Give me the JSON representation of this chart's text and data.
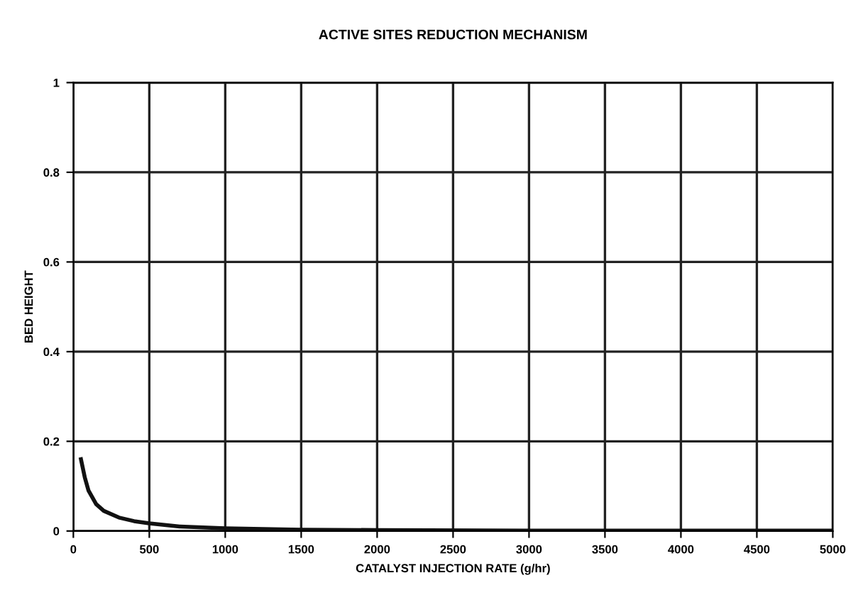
{
  "chart_data": {
    "type": "line",
    "title": "ACTIVE SITES REDUCTION MECHANISM",
    "xlabel": "CATALYST INJECTION RATE (g/hr)",
    "ylabel": "BED HEIGHT",
    "x": [
      50,
      75,
      100,
      150,
      200,
      300,
      400,
      500,
      700,
      1000,
      1500,
      2000,
      3000,
      4000,
      5000
    ],
    "series": [
      {
        "color": "#111111",
        "values": [
          0.16,
          0.12,
          0.09,
          0.06,
          0.045,
          0.03,
          0.022,
          0.017,
          0.01,
          0.006,
          0.003,
          0.002,
          0.001,
          0.001,
          0.001
        ]
      }
    ],
    "xlim": [
      0,
      5000
    ],
    "xticks": [
      0,
      500,
      1000,
      1500,
      2000,
      2500,
      3000,
      3500,
      4000,
      4500,
      5000
    ],
    "ylim": [
      0,
      1
    ],
    "yticks": [
      0,
      0.2,
      0.4,
      0.6,
      0.8,
      1
    ],
    "grid": true,
    "line_style": "solid",
    "marker": "none"
  }
}
